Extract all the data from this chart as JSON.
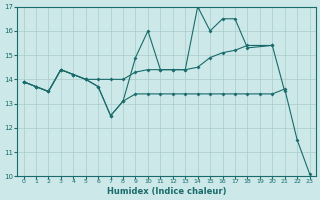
{
  "xlabel": "Humidex (Indice chaleur)",
  "bg_color": "#cce8e8",
  "grid_color": "#aacccc",
  "line_color": "#1a6b6b",
  "xlim": [
    -0.5,
    23.5
  ],
  "ylim": [
    10,
    17
  ],
  "xticks": [
    0,
    1,
    2,
    3,
    4,
    5,
    6,
    7,
    8,
    9,
    10,
    11,
    12,
    13,
    14,
    15,
    16,
    17,
    18,
    19,
    20,
    21,
    22,
    23
  ],
  "yticks": [
    10,
    11,
    12,
    13,
    14,
    15,
    16,
    17
  ],
  "s1_x": [
    0,
    1,
    2,
    3,
    4,
    5,
    6,
    7,
    8,
    9,
    10,
    11,
    12,
    13,
    14,
    15,
    16,
    17,
    18,
    20,
    21
  ],
  "s1_y": [
    13.9,
    13.7,
    13.5,
    14.4,
    14.2,
    14.0,
    13.7,
    12.5,
    13.1,
    14.9,
    16.0,
    14.4,
    14.4,
    14.4,
    17.0,
    16.0,
    16.5,
    16.5,
    15.3,
    15.4,
    13.5
  ],
  "s2_x": [
    0,
    1,
    2,
    3,
    4,
    5,
    6,
    7,
    8,
    9,
    10,
    11,
    12,
    13,
    14,
    15,
    16,
    17,
    18,
    20
  ],
  "s2_y": [
    13.9,
    13.7,
    13.5,
    14.4,
    14.2,
    14.0,
    14.0,
    14.0,
    14.0,
    14.3,
    14.4,
    14.4,
    14.4,
    14.4,
    14.5,
    14.9,
    15.1,
    15.2,
    15.4,
    15.4
  ],
  "s3_x": [
    0,
    1,
    2,
    3,
    4,
    5,
    6,
    7,
    8,
    9,
    10,
    11,
    12,
    13,
    14,
    15,
    16,
    17,
    18,
    19,
    20,
    21,
    22,
    23
  ],
  "s3_y": [
    13.9,
    13.7,
    13.5,
    14.4,
    14.2,
    14.0,
    13.7,
    12.5,
    13.1,
    13.4,
    13.4,
    13.4,
    13.4,
    13.4,
    13.4,
    13.4,
    13.4,
    13.4,
    13.4,
    13.4,
    13.4,
    13.6,
    11.5,
    10.1
  ]
}
